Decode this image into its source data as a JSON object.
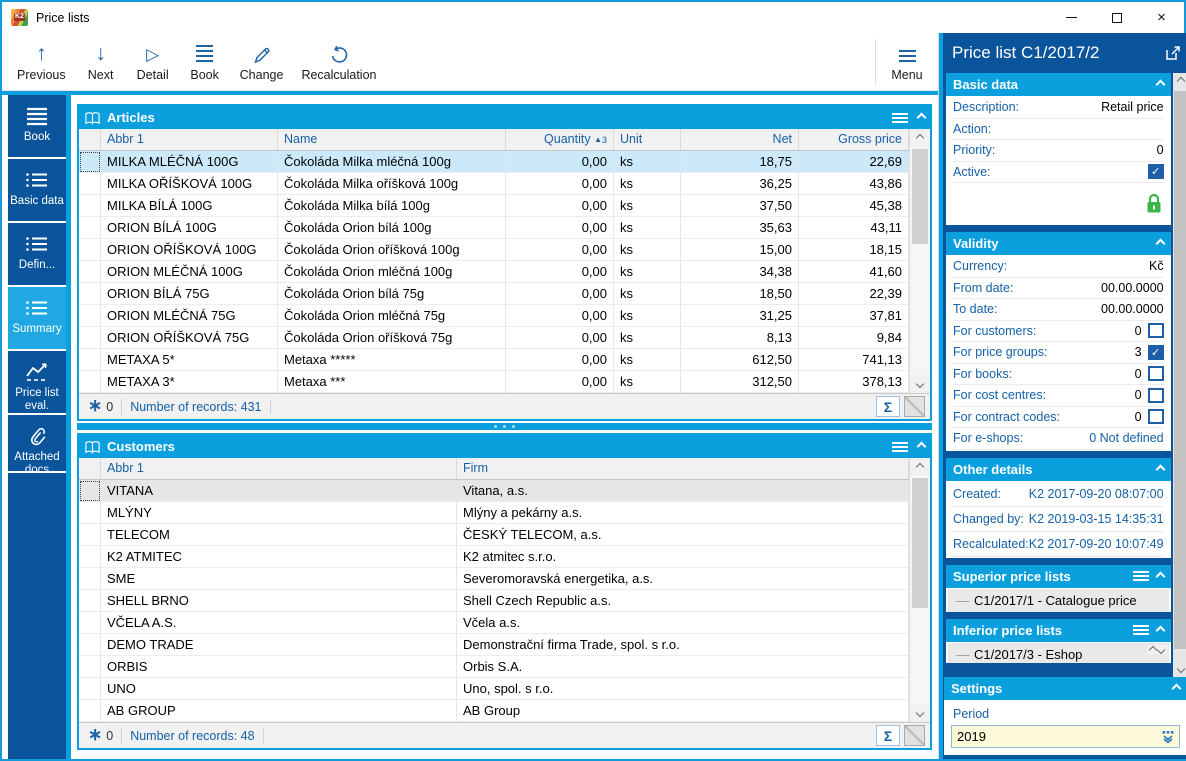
{
  "window": {
    "title": "Price lists",
    "controls": {
      "minimize": "minimize",
      "maximize": "maximize",
      "close": "close"
    }
  },
  "toolbar": {
    "previous_label": "Previous",
    "next_label": "Next",
    "detail_label": "Detail",
    "book_label": "Book",
    "change_label": "Change",
    "recalculation_label": "Recalculation",
    "menu_label": "Menu"
  },
  "sidebar": {
    "items": [
      {
        "label": "Book",
        "icon": "book-lines-icon",
        "active": false
      },
      {
        "label": "Basic data",
        "icon": "list-icon",
        "active": false
      },
      {
        "label": "Defin...",
        "icon": "list-icon",
        "active": false
      },
      {
        "label": "Summary",
        "icon": "list-icon",
        "active": true
      },
      {
        "label": "Price list eval.",
        "icon": "chart-icon",
        "active": false
      },
      {
        "label": "Attached docs",
        "icon": "paperclip-icon",
        "active": false
      }
    ]
  },
  "articles": {
    "title": "Articles",
    "columns": [
      "Abbr 1",
      "Name",
      "Quantity",
      "Unit",
      "Net",
      "Gross price"
    ],
    "sort": {
      "column": "Quantity",
      "direction": "asc",
      "order": "3"
    },
    "selected_index": 0,
    "rows": [
      {
        "abbr": "MILKA MLÉČNÁ 100G",
        "name": "Čokoláda Milka mléčná 100g",
        "qty": "0,00",
        "unit": "ks",
        "net": "18,75",
        "gross": "22,69"
      },
      {
        "abbr": "MILKA OŘÍŠKOVÁ 100G",
        "name": "Čokoláda Milka oříšková 100g",
        "qty": "0,00",
        "unit": "ks",
        "net": "36,25",
        "gross": "43,86"
      },
      {
        "abbr": "MILKA BÍLÁ 100G",
        "name": "Čokoláda Milka bílá 100g",
        "qty": "0,00",
        "unit": "ks",
        "net": "37,50",
        "gross": "45,38"
      },
      {
        "abbr": "ORION BÍLÁ 100G",
        "name": "Čokoláda Orion bílá 100g",
        "qty": "0,00",
        "unit": "ks",
        "net": "35,63",
        "gross": "43,11"
      },
      {
        "abbr": "ORION OŘÍŠKOVÁ 100G",
        "name": "Čokoláda Orion oříšková 100g",
        "qty": "0,00",
        "unit": "ks",
        "net": "15,00",
        "gross": "18,15"
      },
      {
        "abbr": "ORION MLÉČNÁ 100G",
        "name": "Čokoláda Orion mléčná 100g",
        "qty": "0,00",
        "unit": "ks",
        "net": "34,38",
        "gross": "41,60"
      },
      {
        "abbr": "ORION BÍLÁ 75G",
        "name": "Čokoláda Orion bílá 75g",
        "qty": "0,00",
        "unit": "ks",
        "net": "18,50",
        "gross": "22,39"
      },
      {
        "abbr": "ORION MLÉČNÁ 75G",
        "name": "Čokoláda Orion mléčná 75g",
        "qty": "0,00",
        "unit": "ks",
        "net": "31,25",
        "gross": "37,81"
      },
      {
        "abbr": "ORION OŘÍŠKOVÁ 75G",
        "name": "Čokoláda Orion oříšková 75g",
        "qty": "0,00",
        "unit": "ks",
        "net": "8,13",
        "gross": "9,84"
      },
      {
        "abbr": "METAXA 5*",
        "name": "Metaxa *****",
        "qty": "0,00",
        "unit": "ks",
        "net": "612,50",
        "gross": "741,13"
      },
      {
        "abbr": "METAXA 3*",
        "name": "Metaxa ***",
        "qty": "0,00",
        "unit": "ks",
        "net": "312,50",
        "gross": "378,13"
      }
    ],
    "status": {
      "flag_count": "0",
      "records_label": "Number of records: 431"
    }
  },
  "customers": {
    "title": "Customers",
    "columns": [
      "Abbr 1",
      "Firm"
    ],
    "selected_index": 0,
    "rows": [
      {
        "abbr": "VITANA",
        "firm": "Vitana, a.s."
      },
      {
        "abbr": "MLÝNY",
        "firm": "Mlýny a pekárny a.s."
      },
      {
        "abbr": "TELECOM",
        "firm": "ČESKÝ TELECOM, a.s."
      },
      {
        "abbr": "K2 ATMITEC",
        "firm": "K2 atmitec s.r.o."
      },
      {
        "abbr": "SME",
        "firm": "Severomoravská energetika, a.s."
      },
      {
        "abbr": "SHELL BRNO",
        "firm": "Shell Czech Republic a.s."
      },
      {
        "abbr": "VČELA A.S.",
        "firm": "Včela a.s."
      },
      {
        "abbr": "DEMO TRADE",
        "firm": "Demonstrační firma Trade, spol. s r.o."
      },
      {
        "abbr": "ORBIS",
        "firm": "Orbis S.A."
      },
      {
        "abbr": "UNO",
        "firm": "Uno, spol. s r.o."
      },
      {
        "abbr": "AB GROUP",
        "firm": "AB Group"
      }
    ],
    "status": {
      "flag_count": "0",
      "records_label": "Number of records: 48"
    }
  },
  "detail_panel": {
    "title": "Price list C1/2017/2",
    "basic_data": {
      "title": "Basic data",
      "fields": [
        {
          "label": "Description:",
          "value": "Retail price"
        },
        {
          "label": "Action:",
          "value": ""
        },
        {
          "label": "Priority:",
          "value": "0"
        },
        {
          "label": "Active:",
          "value": "checked"
        }
      ]
    },
    "validity": {
      "title": "Validity",
      "fields": [
        {
          "label": "Currency:",
          "value": "Kč"
        },
        {
          "label": "From date:",
          "value": "00.00.0000"
        },
        {
          "label": "To date:",
          "value": "00.00.0000"
        },
        {
          "label": "For customers:",
          "value": "0",
          "checkbox": "unchecked"
        },
        {
          "label": "For price groups:",
          "value": "3",
          "checkbox": "checked"
        },
        {
          "label": "For books:",
          "value": "0",
          "checkbox": "unchecked"
        },
        {
          "label": "For cost centres:",
          "value": "0",
          "checkbox": "unchecked"
        },
        {
          "label": "For contract codes:",
          "value": "0",
          "checkbox": "unchecked"
        },
        {
          "label": "For e-shops:",
          "value": "0 Not defined"
        }
      ]
    },
    "other_details": {
      "title": "Other details",
      "fields": [
        {
          "label": "Created:",
          "value": "K2 2017-09-20 08:07:00"
        },
        {
          "label": "Changed by:",
          "value": "K2 2019-03-15 14:35:31"
        },
        {
          "label": "Recalculated:",
          "value": "K2 2017-09-20 10:07:49"
        }
      ]
    },
    "superior_price_lists": {
      "title": "Superior price lists",
      "items": [
        "C1/2017/1 - Catalogue price"
      ]
    },
    "inferior_price_lists": {
      "title": "Inferior price lists",
      "items": [
        "C1/2017/3 - Eshop"
      ]
    },
    "settings": {
      "title": "Settings",
      "period_label": "Period",
      "period_value": "2019"
    }
  },
  "colors": {
    "accent": "#0c9fde",
    "dark_blue": "#0a549b",
    "link_blue": "#1560a8",
    "selected_row": "#cbe9f9",
    "input_yellow": "#fcf9d8",
    "lock_green": "#3bb44a"
  }
}
